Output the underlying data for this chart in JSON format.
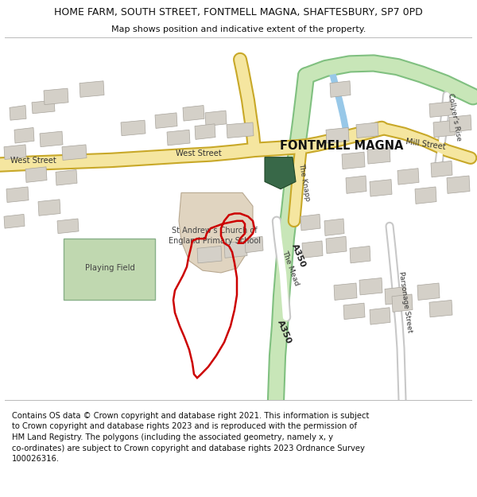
{
  "title_line1": "HOME FARM, SOUTH STREET, FONTMELL MAGNA, SHAFTESBURY, SP7 0PD",
  "title_line2": "Map shows position and indicative extent of the property.",
  "footer_text": "Contains OS data © Crown copyright and database right 2021. This information is subject\nto Crown copyright and database rights 2023 and is reproduced with the permission of\nHM Land Registry. The polygons (including the associated geometry, namely x, y\nco-ordinates) are subject to Crown copyright and database rights 2023 Ordnance Survey\n100026316.",
  "map_bg": "#f0eeea",
  "road_major_color": "#f5e6a0",
  "road_major_outline": "#c8a828",
  "road_green_color": "#c8e6b8",
  "road_green_outline": "#80c080",
  "road_minor_color": "#ffffff",
  "road_minor_outline": "#c8c8c8",
  "building_fill": "#d4d0c8",
  "building_outline": "#a8a49c",
  "school_fill": "#e0d4c0",
  "playing_field_fill": "#c0d8b0",
  "playing_field_outline": "#88b088",
  "dark_green_fill": "#386848",
  "water_color": "#98c8e8",
  "red_color": "#cc0000",
  "red_lw": 1.8
}
